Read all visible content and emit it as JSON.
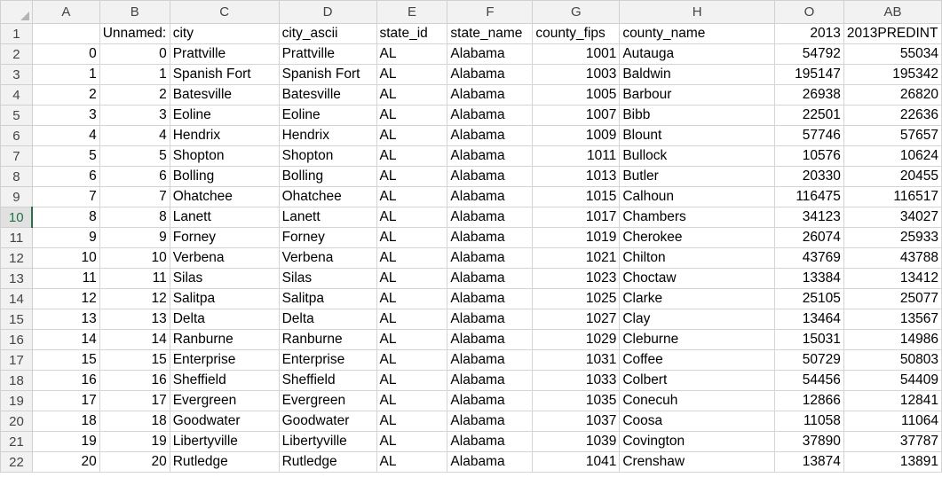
{
  "columns": [
    "A",
    "B",
    "C",
    "D",
    "E",
    "F",
    "G",
    "H",
    "O",
    "AB"
  ],
  "row_numbers": [
    "1",
    "2",
    "3",
    "4",
    "5",
    "6",
    "7",
    "8",
    "9",
    "10",
    "11",
    "12",
    "13",
    "14",
    "15",
    "16",
    "17",
    "18",
    "19",
    "20",
    "21",
    "22"
  ],
  "header_row": [
    "",
    "Unnamed:",
    "city",
    "city_ascii",
    "state_id",
    "state_name",
    "county_fips",
    "county_name",
    "2013",
    "2013PREDINT"
  ],
  "rows": [
    [
      "0",
      "0",
      "Prattville",
      "Prattville",
      "AL",
      "Alabama",
      "1001",
      "Autauga",
      "54792",
      "55034"
    ],
    [
      "1",
      "1",
      "Spanish Fort",
      "Spanish Fort",
      "AL",
      "Alabama",
      "1003",
      "Baldwin",
      "195147",
      "195342"
    ],
    [
      "2",
      "2",
      "Batesville",
      "Batesville",
      "AL",
      "Alabama",
      "1005",
      "Barbour",
      "26938",
      "26820"
    ],
    [
      "3",
      "3",
      "Eoline",
      "Eoline",
      "AL",
      "Alabama",
      "1007",
      "Bibb",
      "22501",
      "22636"
    ],
    [
      "4",
      "4",
      "Hendrix",
      "Hendrix",
      "AL",
      "Alabama",
      "1009",
      "Blount",
      "57746",
      "57657"
    ],
    [
      "5",
      "5",
      "Shopton",
      "Shopton",
      "AL",
      "Alabama",
      "1011",
      "Bullock",
      "10576",
      "10624"
    ],
    [
      "6",
      "6",
      "Bolling",
      "Bolling",
      "AL",
      "Alabama",
      "1013",
      "Butler",
      "20330",
      "20455"
    ],
    [
      "7",
      "7",
      "Ohatchee",
      "Ohatchee",
      "AL",
      "Alabama",
      "1015",
      "Calhoun",
      "116475",
      "116517"
    ],
    [
      "8",
      "8",
      "Lanett",
      "Lanett",
      "AL",
      "Alabama",
      "1017",
      "Chambers",
      "34123",
      "34027"
    ],
    [
      "9",
      "9",
      "Forney",
      "Forney",
      "AL",
      "Alabama",
      "1019",
      "Cherokee",
      "26074",
      "25933"
    ],
    [
      "10",
      "10",
      "Verbena",
      "Verbena",
      "AL",
      "Alabama",
      "1021",
      "Chilton",
      "43769",
      "43788"
    ],
    [
      "11",
      "11",
      "Silas",
      "Silas",
      "AL",
      "Alabama",
      "1023",
      "Choctaw",
      "13384",
      "13412"
    ],
    [
      "12",
      "12",
      "Salitpa",
      "Salitpa",
      "AL",
      "Alabama",
      "1025",
      "Clarke",
      "25105",
      "25077"
    ],
    [
      "13",
      "13",
      "Delta",
      "Delta",
      "AL",
      "Alabama",
      "1027",
      "Clay",
      "13464",
      "13567"
    ],
    [
      "14",
      "14",
      "Ranburne",
      "Ranburne",
      "AL",
      "Alabama",
      "1029",
      "Cleburne",
      "15031",
      "14986"
    ],
    [
      "15",
      "15",
      "Enterprise",
      "Enterprise",
      "AL",
      "Alabama",
      "1031",
      "Coffee",
      "50729",
      "50803"
    ],
    [
      "16",
      "16",
      "Sheffield",
      "Sheffield",
      "AL",
      "Alabama",
      "1033",
      "Colbert",
      "54456",
      "54409"
    ],
    [
      "17",
      "17",
      "Evergreen",
      "Evergreen",
      "AL",
      "Alabama",
      "1035",
      "Conecuh",
      "12866",
      "12841"
    ],
    [
      "18",
      "18",
      "Goodwater",
      "Goodwater",
      "AL",
      "Alabama",
      "1037",
      "Coosa",
      "11058",
      "11064"
    ],
    [
      "19",
      "19",
      "Libertyville",
      "Libertyville",
      "AL",
      "Alabama",
      "1039",
      "Covington",
      "37890",
      "37787"
    ],
    [
      "20",
      "20",
      "Rutledge",
      "Rutledge",
      "AL",
      "Alabama",
      "1041",
      "Crenshaw",
      "13874",
      "13891"
    ]
  ],
  "active_row": "10",
  "colors": {
    "header_bg": "#f2f2f2",
    "active_accent": "#217346",
    "gridline": "#d4d4d4"
  }
}
